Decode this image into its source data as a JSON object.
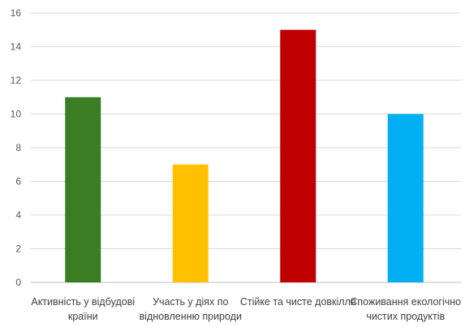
{
  "chart_data": {
    "type": "bar",
    "title": "",
    "xlabel": "",
    "ylabel": "",
    "ylim": [
      0,
      16
    ],
    "yticks": [
      0,
      2,
      4,
      6,
      8,
      10,
      12,
      14,
      16
    ],
    "grid": true,
    "legend": "none",
    "categories": [
      [
        "Активність у відбудові",
        "країни"
      ],
      [
        "Участь у діях по",
        "відновленню природи"
      ],
      [
        "Стійке та чисте довкілля"
      ],
      [
        "Споживання екологічно",
        "чистих  продуктів"
      ]
    ],
    "values": [
      11,
      7,
      15,
      10
    ],
    "colors": [
      "#3a7d22",
      "#ffc000",
      "#c00000",
      "#00b0f0"
    ]
  }
}
